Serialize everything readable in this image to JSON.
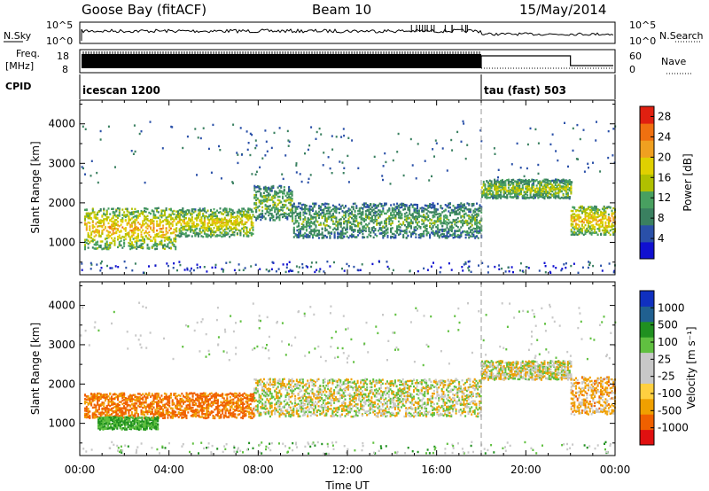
{
  "header": {
    "station": "Goose Bay (fitACF)",
    "beam": "Beam 10",
    "date": "15/May/2014"
  },
  "strips": {
    "nsky_label": "N.Sky",
    "nsearch_label": "N.Search",
    "noise_ticks": [
      "10^5",
      "10^0"
    ],
    "freq_label_line1": "Freq.",
    "freq_label_line2": "[MHz]",
    "freq_ticks": [
      "18",
      "8"
    ],
    "nave_label": "Nave",
    "nave_ticks": [
      "60",
      "0"
    ],
    "cpid_label": "CPID",
    "cpid_segments": [
      {
        "name": "icescan 1200",
        "start_hour": 0,
        "end_hour": 18
      },
      {
        "name": "tau (fast) 503",
        "start_hour": 18,
        "end_hour": 24
      }
    ]
  },
  "colors": {
    "power": [
      "#1010d0",
      "#2a50a8",
      "#3a8060",
      "#48a060",
      "#b0c000",
      "#e0d000",
      "#f0a020",
      "#f07010",
      "#e02010"
    ],
    "velocity": [
      "#e01010",
      "#f06000",
      "#f0a000",
      "#ffd040",
      "#c8c8c8",
      "#c8c8c8",
      "#60c040",
      "#209020",
      "#206090",
      "#1030c0"
    ]
  },
  "chart_data": [
    {
      "type": "heatmap",
      "title": "Power",
      "xlabel": "",
      "ylabel": "Slant Range [km]",
      "x_ticks": [
        "00:00",
        "04:00",
        "08:00",
        "12:00",
        "16:00",
        "20:00",
        "00:00"
      ],
      "xlim_hours": [
        0,
        24
      ],
      "y_ticks": [
        1000,
        2000,
        3000,
        4000
      ],
      "ylim": [
        180,
        4600
      ],
      "colorbar": {
        "label": "Power [dB]",
        "ticks": [
          4,
          8,
          12,
          16,
          20,
          24,
          28
        ],
        "range": [
          0,
          30
        ]
      },
      "features": [
        {
          "t_start": 0.2,
          "t_end": 4.3,
          "r_center": 1350,
          "r_width": 650,
          "level": 22
        },
        {
          "t_start": 4.3,
          "t_end": 7.8,
          "r_center": 1500,
          "r_width": 450,
          "level": 19
        },
        {
          "t_start": 7.8,
          "t_end": 9.5,
          "r_center": 2000,
          "r_width": 550,
          "level": 14
        },
        {
          "t_start": 9.5,
          "t_end": 18.0,
          "r_center": 1550,
          "r_width": 550,
          "level": 12
        },
        {
          "t_start": 18.0,
          "t_end": 22.0,
          "r_center": 2350,
          "r_width": 300,
          "level": 16
        },
        {
          "t_start": 22.0,
          "t_end": 24.0,
          "r_center": 1550,
          "r_width": 450,
          "level": 22
        }
      ]
    },
    {
      "type": "heatmap",
      "title": "Velocity",
      "xlabel": "Time UT",
      "ylabel": "Slant Range [km]",
      "x_ticks": [
        "00:00",
        "04:00",
        "08:00",
        "12:00",
        "16:00",
        "20:00",
        "00:00"
      ],
      "xlim_hours": [
        0,
        24
      ],
      "y_ticks": [
        1000,
        2000,
        3000,
        4000
      ],
      "ylim": [
        180,
        4600
      ],
      "colorbar": {
        "label": "Velocity [m s⁻¹]",
        "ticks": [
          1000,
          500,
          100,
          25,
          -25,
          -100,
          -500,
          -1000
        ]
      },
      "features": [
        {
          "t_start": 0.2,
          "t_end": 7.8,
          "r_center": 1450,
          "r_width": 400,
          "velocity": -120
        },
        {
          "t_start": 0.8,
          "t_end": 3.5,
          "r_center": 1000,
          "r_width": 200,
          "velocity": 100
        },
        {
          "t_start": 7.8,
          "t_end": 18.0,
          "r_center": 1650,
          "r_width": 600,
          "velocity": 0
        },
        {
          "t_start": 18.0,
          "t_end": 22.0,
          "r_center": 2350,
          "r_width": 300,
          "velocity": 0
        },
        {
          "t_start": 22.0,
          "t_end": 24.0,
          "r_center": 1700,
          "r_width": 600,
          "velocity": -50
        }
      ]
    }
  ]
}
